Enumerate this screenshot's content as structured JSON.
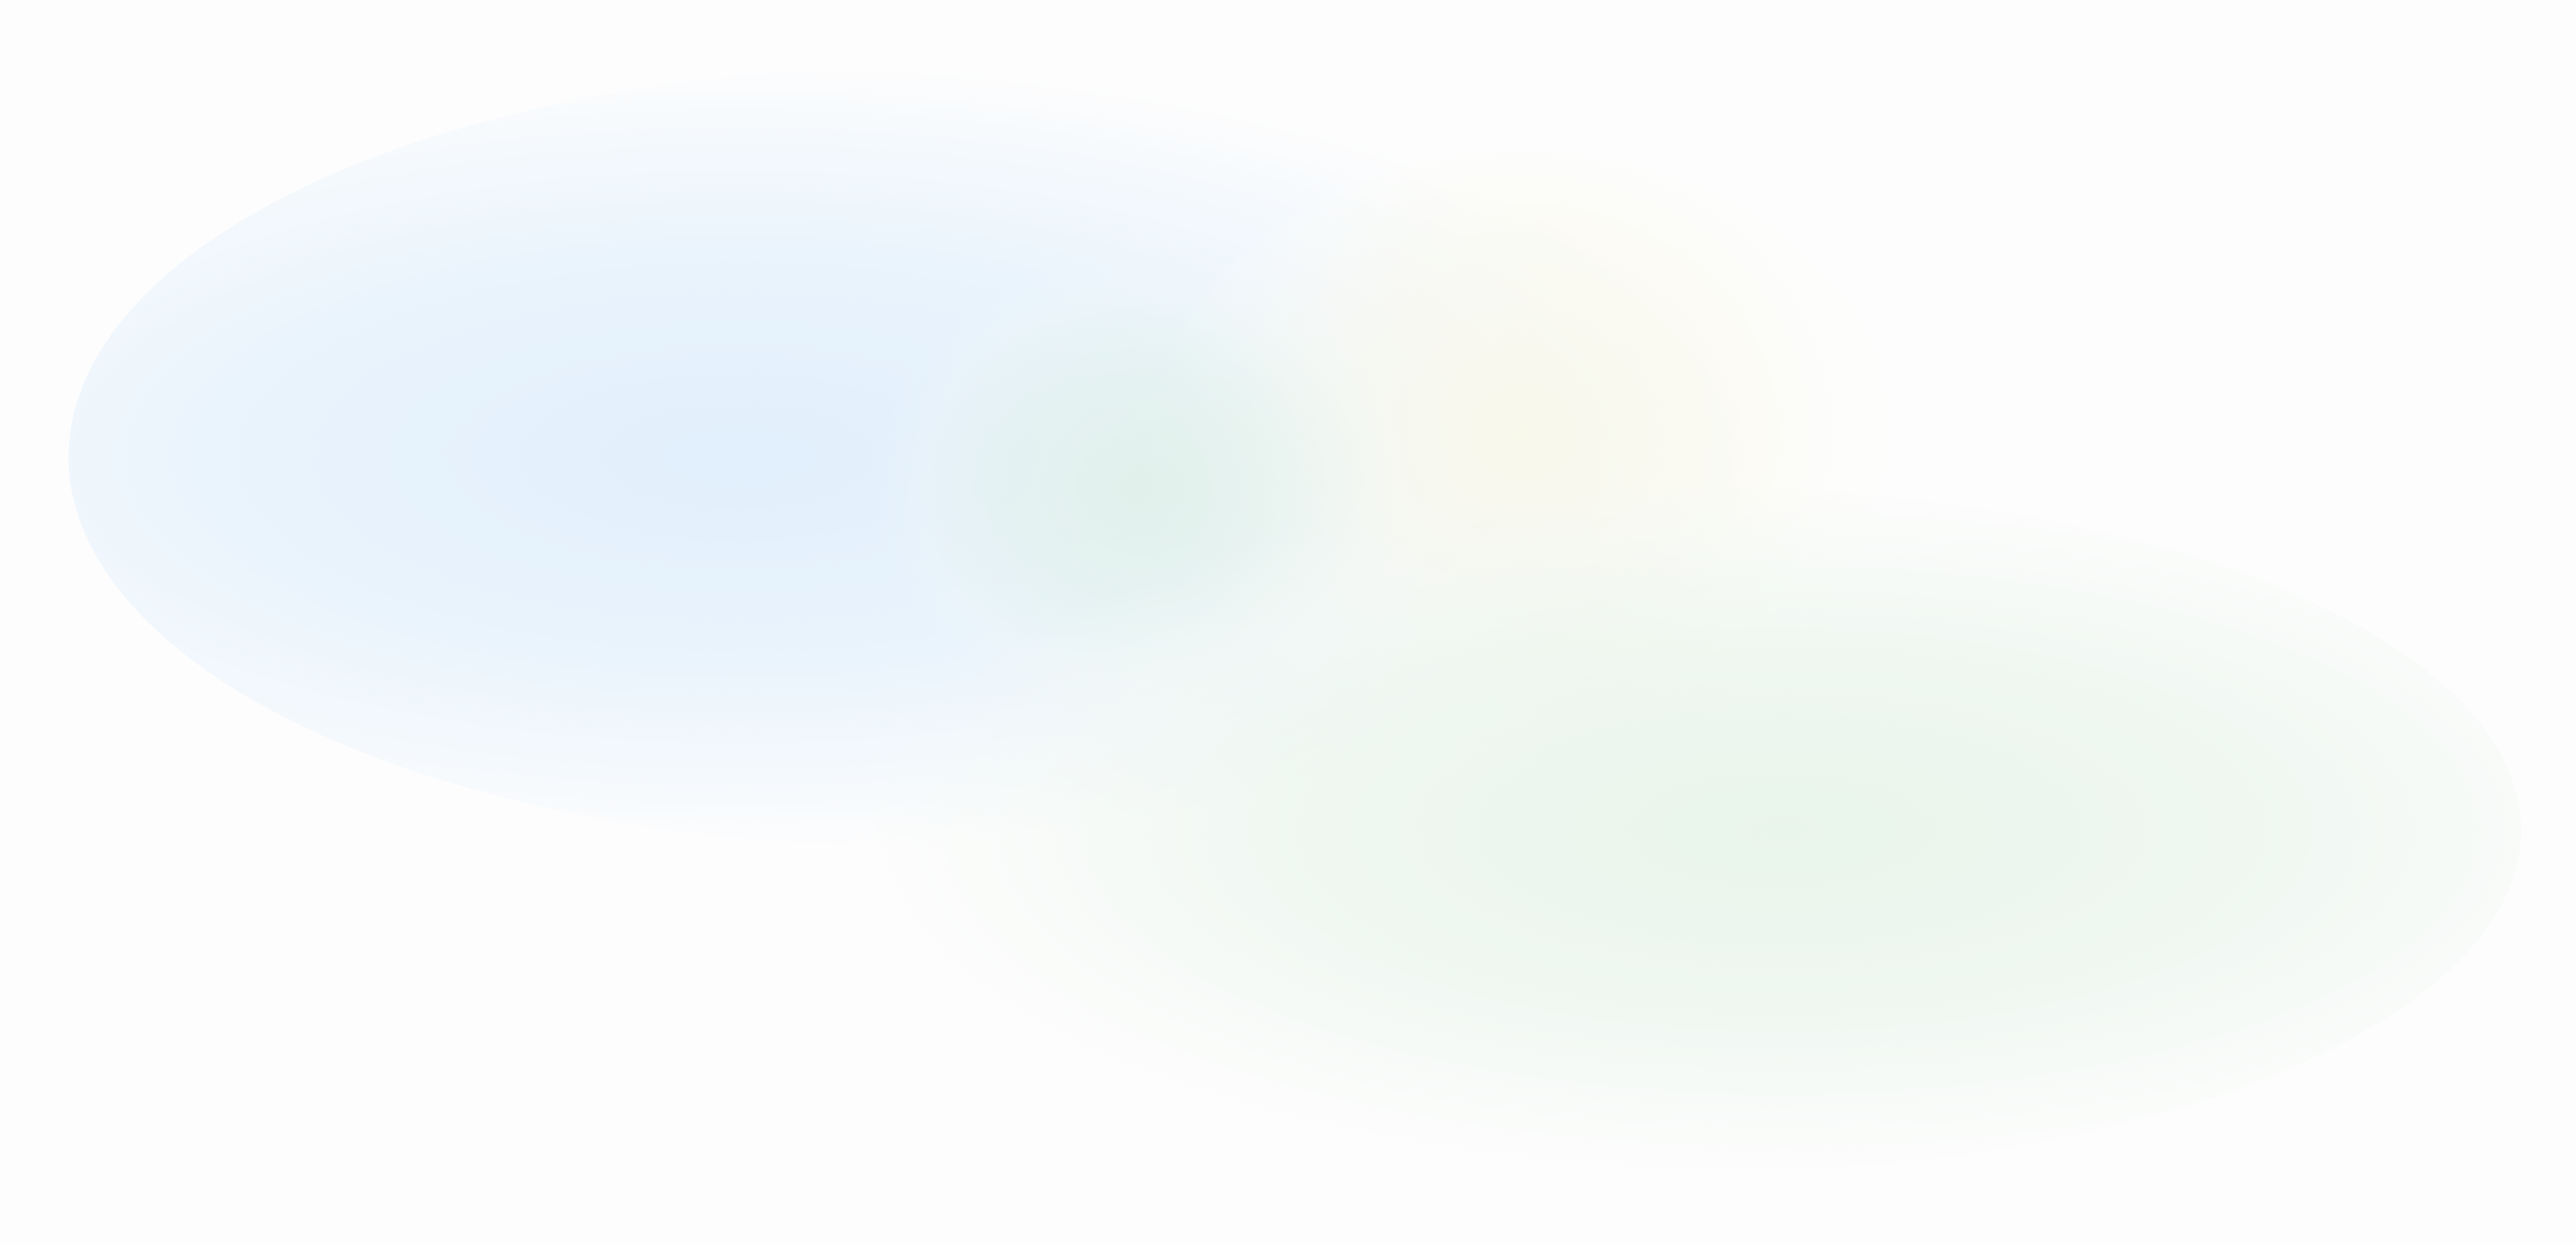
{
  "background": {
    "base_color": "#fdfdfd",
    "blobs": [
      {
        "name": "blue-glow",
        "color": "#e0eefc"
      },
      {
        "name": "yellow-glow",
        "color": "#f9f8e9"
      },
      {
        "name": "teal-glow",
        "color": "#e0f0e8"
      },
      {
        "name": "green-glow",
        "color": "#e8f4ea"
      }
    ]
  }
}
